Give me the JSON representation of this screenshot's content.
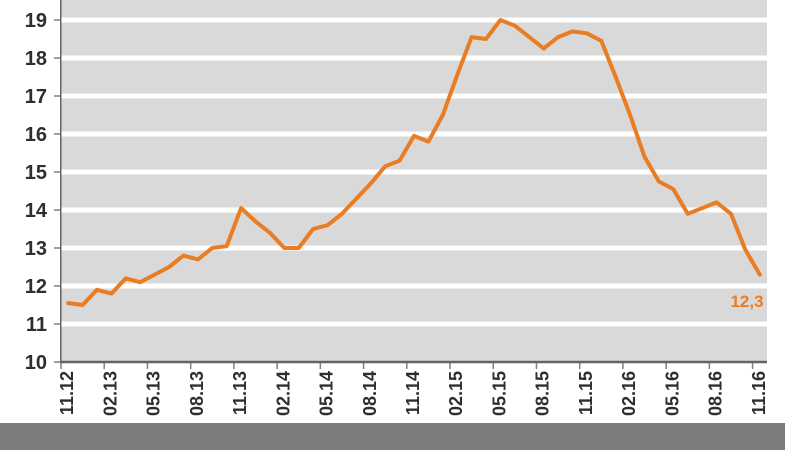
{
  "chart_data": {
    "type": "line",
    "title": "",
    "legend": "none",
    "grid": "horizontal-white-stripes-on-gray",
    "ylim": [
      10,
      19.5
    ],
    "y_ticks": [
      19,
      18,
      17,
      16,
      15,
      14,
      13,
      12,
      11,
      10
    ],
    "x_tick_labels": [
      "11.12",
      "02.13",
      "05.13",
      "08.13",
      "11.13",
      "02.14",
      "05.14",
      "08.14",
      "11.14",
      "02.15",
      "05.15",
      "08.15",
      "11.15",
      "02.16",
      "05.16",
      "08.16",
      "11.16"
    ],
    "x": [
      "11.12",
      "12.12",
      "01.13",
      "02.13",
      "03.13",
      "04.13",
      "05.13",
      "06.13",
      "07.13",
      "08.13",
      "09.13",
      "10.13",
      "11.13",
      "12.13",
      "01.14",
      "02.14",
      "03.14",
      "04.14",
      "05.14",
      "06.14",
      "07.14",
      "08.14",
      "09.14",
      "10.14",
      "11.14",
      "12.14",
      "01.15",
      "02.15",
      "03.15",
      "04.15",
      "05.15",
      "06.15",
      "07.15",
      "08.15",
      "09.15",
      "10.15",
      "11.15",
      "12.15",
      "01.16",
      "02.16",
      "03.16",
      "04.16",
      "05.16",
      "06.16",
      "07.16",
      "08.16",
      "09.16",
      "10.16",
      "11.16"
    ],
    "series": [
      {
        "name": "value-line",
        "values": [
          11.55,
          11.5,
          11.9,
          11.8,
          12.2,
          12.1,
          12.3,
          12.5,
          12.8,
          12.7,
          13.0,
          13.05,
          14.05,
          13.7,
          13.4,
          13.0,
          13.0,
          13.5,
          13.6,
          13.9,
          14.3,
          14.7,
          15.15,
          15.3,
          15.95,
          15.8,
          16.5,
          17.55,
          18.55,
          18.5,
          19.0,
          18.85,
          18.55,
          18.25,
          18.55,
          18.7,
          18.65,
          18.45,
          17.5,
          16.5,
          15.4,
          14.75,
          14.55,
          13.9,
          14.05,
          14.2,
          13.9,
          12.95,
          12.3
        ]
      }
    ],
    "end_label": "12,3",
    "colors": {
      "line": "#E87D23",
      "plot_bg": "#D9D9D9",
      "gridline": "#FFFFFF",
      "axis_line": "#646464",
      "tick": "#808080",
      "label_text": "#2E2E2E",
      "end_label": "#E87D23",
      "bottom_bar": "#7C7C7C",
      "page_bg": "#FFFFFF"
    }
  }
}
